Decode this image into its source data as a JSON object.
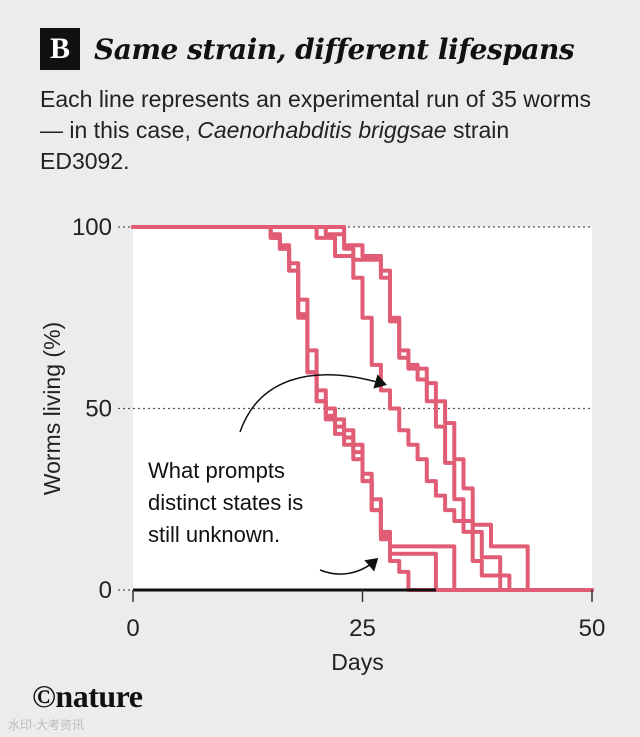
{
  "header": {
    "badge": "B",
    "title": "Same strain, different lifespans",
    "subtitle_part1": "Each line represents an experimental run of 35 worms — in this case, ",
    "subtitle_species": "Caenorhabditis briggsae",
    "subtitle_part2": " strain ED3092."
  },
  "footer": {
    "logo": "©nature",
    "watermark": "水印·大考资讯"
  },
  "colors": {
    "line": "#e05d75",
    "axis": "#111111",
    "plot_bg": "#ffffff"
  },
  "chart_data": {
    "type": "line",
    "title": "Same strain, different lifespans",
    "xlabel": "Days",
    "ylabel": "Worms living (%)",
    "xlim": [
      0,
      50
    ],
    "ylim": [
      0,
      100
    ],
    "xticks": [
      0,
      25,
      50
    ],
    "yticks": [
      0,
      50,
      100
    ],
    "gridlines_y": [
      50,
      100
    ],
    "series": [
      {
        "x": [
          0,
          13,
          15,
          16,
          17,
          18,
          19,
          20,
          21,
          22,
          23,
          24,
          25,
          26,
          27,
          28,
          34,
          35,
          50
        ],
        "y": [
          100,
          100,
          97,
          94,
          90,
          80,
          66,
          55,
          50,
          47,
          44,
          40,
          30,
          22,
          16,
          12,
          12,
          0,
          0
        ]
      },
      {
        "x": [
          0,
          14,
          15,
          16,
          17,
          18,
          19,
          20,
          21,
          22,
          23,
          24,
          25,
          26,
          27,
          28,
          32,
          33,
          50
        ],
        "y": [
          100,
          100,
          97,
          94,
          88,
          76,
          60,
          52,
          48,
          45,
          42,
          38,
          32,
          25,
          15,
          10,
          10,
          0,
          0
        ]
      },
      {
        "x": [
          0,
          14,
          15,
          16,
          17,
          18,
          19,
          20,
          21,
          22,
          23,
          24,
          25,
          26,
          27,
          28,
          29,
          30,
          50
        ],
        "y": [
          100,
          100,
          98,
          95,
          88,
          75,
          60,
          52,
          47,
          43,
          40,
          36,
          30,
          22,
          14,
          8,
          5,
          0,
          0
        ]
      },
      {
        "x": [
          0,
          21,
          23,
          24,
          26,
          27,
          28,
          29,
          30,
          32,
          33,
          34,
          35,
          36,
          37,
          39,
          43,
          50
        ],
        "y": [
          100,
          100,
          94,
          91,
          91,
          86,
          75,
          64,
          61,
          57,
          52,
          46,
          36,
          28,
          18,
          12,
          0,
          0
        ]
      },
      {
        "x": [
          0,
          20,
          21,
          23,
          25,
          27,
          28,
          29,
          30,
          31,
          32,
          33,
          34,
          35,
          36,
          38,
          40,
          50
        ],
        "y": [
          100,
          100,
          98,
          95,
          92,
          88,
          74,
          66,
          62,
          58,
          52,
          45,
          35,
          25,
          16,
          9,
          0,
          0
        ]
      },
      {
        "x": [
          0,
          19,
          20,
          22,
          24,
          25,
          26,
          27,
          28,
          29,
          30,
          31,
          32,
          33,
          34,
          35,
          37,
          38,
          41,
          50
        ],
        "y": [
          100,
          100,
          97,
          92,
          86,
          75,
          62,
          55,
          50,
          44,
          40,
          36,
          30,
          26,
          22,
          19,
          8,
          4,
          0,
          0
        ]
      }
    ],
    "annotation": "What prompts distinct states is still unknown."
  }
}
